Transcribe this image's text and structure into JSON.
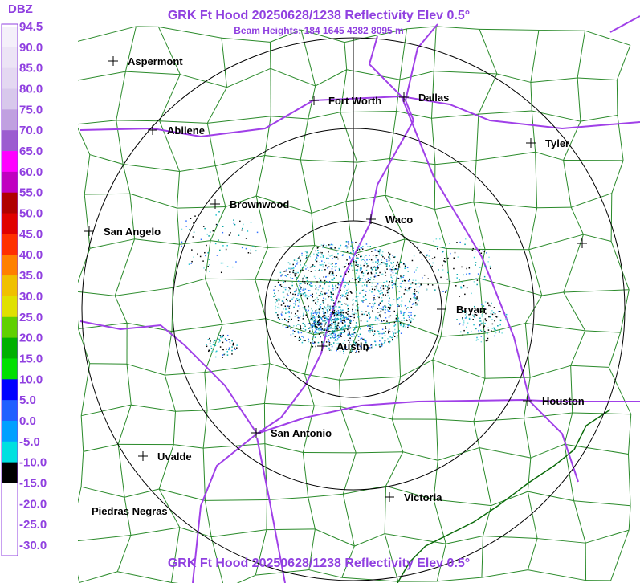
{
  "header": {
    "title": "GRK Ft Hood 20250628/1238 Reflectivity Elev 0.5°",
    "subtitle": "Beam Heights: 184 1645 4282 8095 m"
  },
  "legend": {
    "unit": "DBZ",
    "labels": [
      "94.5",
      "90.0",
      "85.0",
      "80.0",
      "75.0",
      "70.0",
      "65.0",
      "60.0",
      "55.0",
      "50.0",
      "45.0",
      "40.0",
      "35.0",
      "30.0",
      "25.0",
      "20.0",
      "15.0",
      "10.0",
      "5.0",
      "0.0",
      "-5.0",
      "-10.0",
      "-15.0",
      "-20.0",
      "-25.0",
      "-30.0"
    ],
    "colors": [
      "#f4f0fa",
      "#ece4f6",
      "#e4d8f2",
      "#d8c8ec",
      "#c0a0e0",
      "#9c5cd0",
      "#ff00ff",
      "#c000c0",
      "#b00000",
      "#e00000",
      "#ff3000",
      "#ff8000",
      "#f0c000",
      "#e0e000",
      "#60d000",
      "#00b000",
      "#00e000",
      "#0000ff",
      "#2060ff",
      "#00a0ff",
      "#00e0e0",
      "#000000",
      "#ffffff",
      "#ffffff",
      "#ffffff"
    ]
  },
  "cities": [
    "Aspermont",
    "Fort Worth",
    "Dallas",
    "Abilene",
    "Tyler",
    "Brownwood",
    "Waco",
    "San Angelo",
    "Bryan",
    "Austin",
    "Houston",
    "San Antonio",
    "Uvalde",
    "Victoria",
    "Piedras Negras"
  ],
  "footer": {
    "title": "GRK Ft Hood 20250628/1238 Reflectivity Elev 0.5°"
  }
}
